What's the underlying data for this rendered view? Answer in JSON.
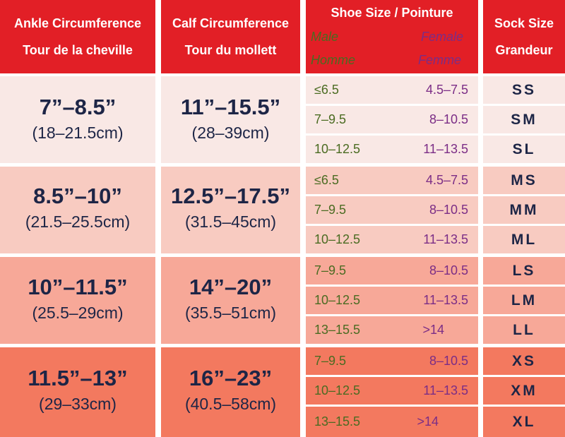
{
  "headers": {
    "ankle": [
      "Ankle Circumference",
      "Tour de la cheville"
    ],
    "calf": [
      "Calf Circumference",
      "Tour du mollett"
    ],
    "shoe_title": "Shoe Size / Pointure",
    "male_en": "Male",
    "male_fr": "Homme",
    "female_en": "Female",
    "female_fr": "Femme",
    "sock": [
      "Sock Size",
      "Grandeur"
    ]
  },
  "groups": [
    {
      "ankle_in": "7”–8.5”",
      "ankle_cm": "(18–21.5cm)",
      "calf_in": "11”–15.5”",
      "calf_cm": "(28–39cm)",
      "rows": [
        {
          "male": "≤6.5",
          "female": "4.5–7.5",
          "sock": "SS"
        },
        {
          "male": "7–9.5",
          "female": "8–10.5",
          "sock": "SM"
        },
        {
          "male": "10–12.5",
          "female": "11–13.5",
          "sock": "SL"
        }
      ]
    },
    {
      "ankle_in": "8.5”–10”",
      "ankle_cm": "(21.5–25.5cm)",
      "calf_in": "12.5”–17.5”",
      "calf_cm": "(31.5–45cm)",
      "rows": [
        {
          "male": "≤6.5",
          "female": "4.5–7.5",
          "sock": "MS"
        },
        {
          "male": "7–9.5",
          "female": "8–10.5",
          "sock": "MM"
        },
        {
          "male": "10–12.5",
          "female": "11–13.5",
          "sock": "ML"
        }
      ]
    },
    {
      "ankle_in": "10”–11.5”",
      "ankle_cm": "(25.5–29cm)",
      "calf_in": "14”–20”",
      "calf_cm": "(35.5–51cm)",
      "rows": [
        {
          "male": "7–9.5",
          "female": "8–10.5",
          "sock": "LS"
        },
        {
          "male": "10–12.5",
          "female": "11–13.5",
          "sock": "LM"
        },
        {
          "male": "13–15.5",
          "female": ">14",
          "sock": "LL"
        }
      ]
    },
    {
      "ankle_in": "11.5”–13”",
      "ankle_cm": "(29–33cm)",
      "calf_in": "16”–23”",
      "calf_cm": "(40.5–58cm)",
      "rows": [
        {
          "male": "7–9.5",
          "female": "8–10.5",
          "sock": "XS"
        },
        {
          "male": "10–12.5",
          "female": "11–13.5",
          "sock": "XM"
        },
        {
          "male": "13–15.5",
          "female": ">14",
          "sock": "XL"
        }
      ]
    }
  ],
  "colors": {
    "header_red": "#e21f26",
    "group_1": "#f9e8e5",
    "group_2": "#f8cbc1",
    "group_3": "#f7a898",
    "group_4": "#f3795f",
    "navy_text": "#1d2546",
    "male_green": "#4a6b21",
    "female_purple": "#7b2d86"
  }
}
